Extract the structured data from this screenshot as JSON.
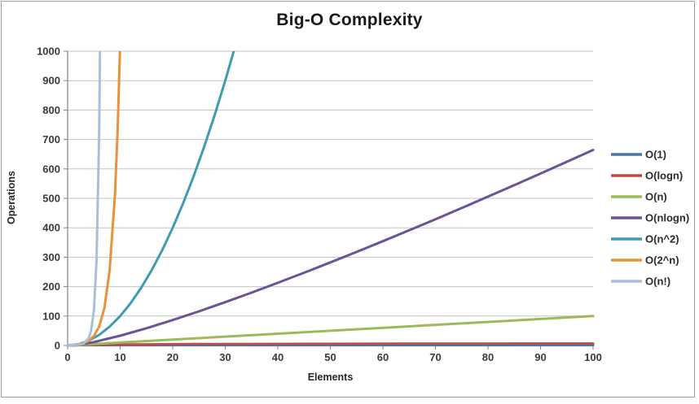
{
  "window": {
    "background": "#ffffff",
    "border_color": "#9b9b9b"
  },
  "chart_data": {
    "type": "line",
    "title": "Big-O Complexity",
    "xlabel": "Elements",
    "ylabel": "Operations",
    "xlim": [
      0,
      100
    ],
    "ylim": [
      0,
      1000
    ],
    "xticks": [
      0,
      10,
      20,
      30,
      40,
      50,
      60,
      70,
      80,
      90,
      100
    ],
    "yticks": [
      0,
      100,
      200,
      300,
      400,
      500,
      600,
      700,
      800,
      900,
      1000
    ],
    "grid": "horizontal-only",
    "grid_color": "#c3c3c3",
    "axis_color": "#808080",
    "tick_label_color": "#3a3a3a",
    "legend_position": "right",
    "series": [
      {
        "name": "O(1)",
        "color": "#4878A8",
        "points": [
          [
            0,
            1
          ],
          [
            100,
            1
          ]
        ]
      },
      {
        "name": "O(logn)",
        "color": "#BE4B48",
        "points": [
          [
            1,
            0
          ],
          [
            2,
            1
          ],
          [
            3,
            1.58
          ],
          [
            4,
            2
          ],
          [
            6,
            2.58
          ],
          [
            8,
            3
          ],
          [
            12,
            3.58
          ],
          [
            16,
            4
          ],
          [
            24,
            4.58
          ],
          [
            32,
            5
          ],
          [
            48,
            5.58
          ],
          [
            64,
            6
          ],
          [
            80,
            6.32
          ],
          [
            100,
            6.64
          ]
        ]
      },
      {
        "name": "O(n)",
        "color": "#9CBB58",
        "points": [
          [
            0,
            0
          ],
          [
            100,
            100
          ]
        ]
      },
      {
        "name": "O(nlogn)",
        "color": "#6B5495",
        "points": [
          [
            1,
            0
          ],
          [
            2,
            2
          ],
          [
            5,
            11.6
          ],
          [
            10,
            33.2
          ],
          [
            15,
            58.6
          ],
          [
            20,
            86.4
          ],
          [
            25,
            116.1
          ],
          [
            30,
            147.2
          ],
          [
            35,
            179.5
          ],
          [
            40,
            212.9
          ],
          [
            45,
            247.2
          ],
          [
            50,
            282.2
          ],
          [
            55,
            317.9
          ],
          [
            60,
            354.4
          ],
          [
            65,
            391.4
          ],
          [
            70,
            429
          ],
          [
            75,
            467.1
          ],
          [
            80,
            505.8
          ],
          [
            85,
            544.8
          ],
          [
            90,
            584.3
          ],
          [
            95,
            624.2
          ],
          [
            100,
            664.4
          ]
        ]
      },
      {
        "name": "O(n^2)",
        "color": "#3F9BB2",
        "points": [
          [
            0,
            0
          ],
          [
            2,
            4
          ],
          [
            4,
            16
          ],
          [
            6,
            36
          ],
          [
            8,
            64
          ],
          [
            10,
            100
          ],
          [
            12,
            144
          ],
          [
            14,
            196
          ],
          [
            16,
            256
          ],
          [
            18,
            324
          ],
          [
            20,
            400
          ],
          [
            22,
            484
          ],
          [
            24,
            576
          ],
          [
            26,
            676
          ],
          [
            28,
            784
          ],
          [
            30,
            900
          ],
          [
            32,
            1024
          ],
          [
            33,
            1089
          ]
        ]
      },
      {
        "name": "O(2^n)",
        "color": "#E9913D",
        "points": [
          [
            0,
            1
          ],
          [
            1,
            2
          ],
          [
            2,
            4
          ],
          [
            3,
            8
          ],
          [
            4,
            16
          ],
          [
            5,
            32
          ],
          [
            6,
            64
          ],
          [
            7,
            128
          ],
          [
            8,
            256
          ],
          [
            9,
            512
          ],
          [
            9.5,
            724
          ],
          [
            10,
            1024
          ],
          [
            10.3,
            1260
          ]
        ]
      },
      {
        "name": "O(n!)",
        "color": "#A9BFD9",
        "points": [
          [
            0,
            1
          ],
          [
            1,
            1
          ],
          [
            2,
            2
          ],
          [
            3,
            6
          ],
          [
            4,
            24
          ],
          [
            4.5,
            52
          ],
          [
            5,
            120
          ],
          [
            5.5,
            288
          ],
          [
            6,
            720
          ],
          [
            6.3,
            1223
          ]
        ]
      }
    ]
  }
}
